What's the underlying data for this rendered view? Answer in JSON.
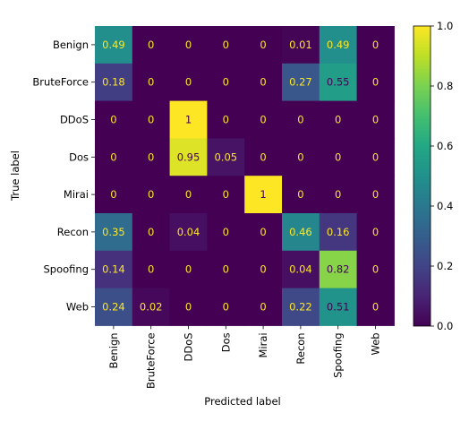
{
  "chart_data": {
    "type": "heatmap",
    "title": "",
    "xlabel": "Predicted label",
    "ylabel": "True label",
    "rows": [
      "Benign",
      "BruteForce",
      "DDoS",
      "Dos",
      "Mirai",
      "Recon",
      "Spoofing",
      "Web"
    ],
    "columns": [
      "Benign",
      "BruteForce",
      "DDoS",
      "Dos",
      "Mirai",
      "Recon",
      "Spoofing",
      "Web"
    ],
    "values": [
      [
        0.49,
        0,
        0,
        0,
        0,
        0.01,
        0.49,
        0
      ],
      [
        0.18,
        0,
        0,
        0,
        0,
        0.27,
        0.55,
        0
      ],
      [
        0,
        0,
        1,
        0,
        0,
        0,
        0,
        0
      ],
      [
        0,
        0,
        0.95,
        0.05,
        0,
        0,
        0,
        0
      ],
      [
        0,
        0,
        0,
        0,
        1,
        0,
        0,
        0
      ],
      [
        0.35,
        0,
        0.04,
        0,
        0,
        0.46,
        0.16,
        0
      ],
      [
        0.14,
        0,
        0,
        0,
        0,
        0.04,
        0.82,
        0
      ],
      [
        0.24,
        0.02,
        0,
        0,
        0,
        0.22,
        0.51,
        0
      ]
    ],
    "colorbar": {
      "colormap": "viridis",
      "range": [
        0.0,
        1.0
      ],
      "ticks": [
        "0.0",
        "0.2",
        "0.4",
        "0.6",
        "0.8",
        "1.0"
      ]
    },
    "legend": "none",
    "grid": false
  }
}
